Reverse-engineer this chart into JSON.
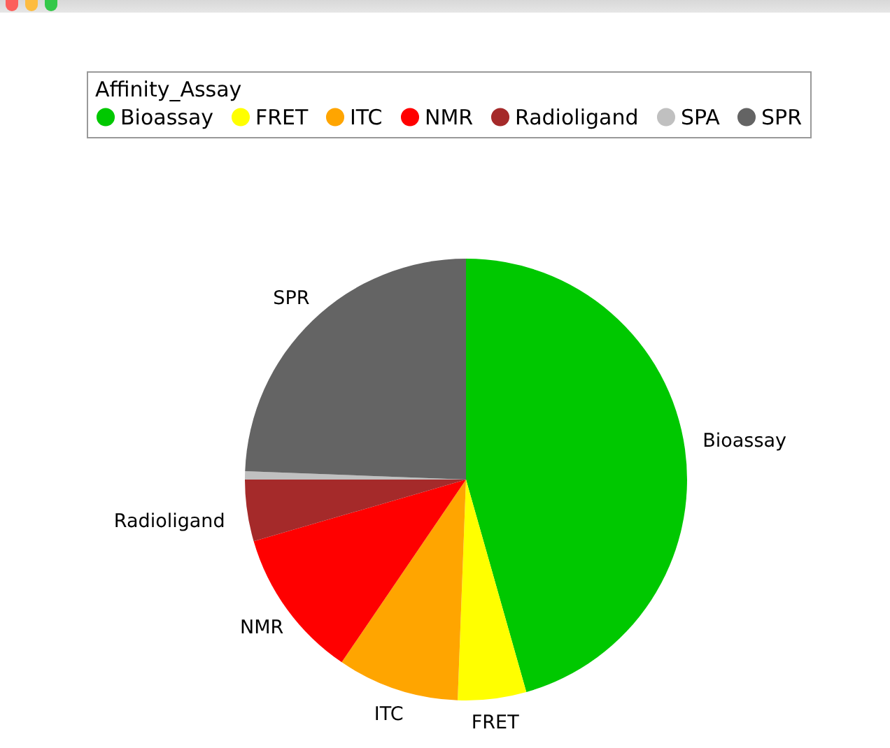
{
  "chart_data": {
    "type": "pie",
    "legend_title": "Affinity_Assay",
    "legend": "top",
    "categories": [
      "Bioassay",
      "FRET",
      "ITC",
      "NMR",
      "Radioligand",
      "SPA",
      "SPR"
    ],
    "values": [
      45.6,
      5.0,
      8.9,
      11.0,
      4.5,
      0.6,
      24.4
    ],
    "colors": [
      "#00c800",
      "#ffff00",
      "#ffa500",
      "#ff0000",
      "#a52a2a",
      "#c0c0c0",
      "#646464"
    ]
  }
}
